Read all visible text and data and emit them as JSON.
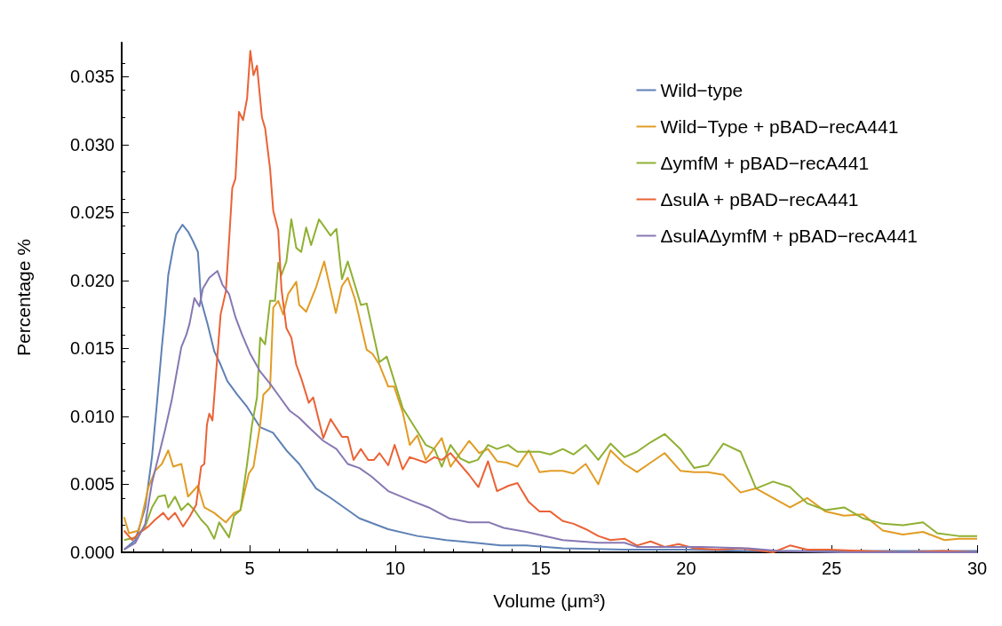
{
  "chart_data": {
    "type": "line",
    "xlabel": "Volume (μm³)",
    "ylabel": "Percentage %",
    "xlim": [
      0.6,
      30
    ],
    "xticks": [
      5,
      10,
      15,
      20,
      25,
      30
    ],
    "ylim": [
      0,
      0.0375
    ],
    "yticks": [
      {
        "value": 0,
        "label": "0.000"
      },
      {
        "value": 0.005,
        "label": "0.005"
      },
      {
        "value": 0.01,
        "label": "0.010"
      },
      {
        "value": 0.015,
        "label": "0.015"
      },
      {
        "value": 0.02,
        "label": "0.020"
      },
      {
        "value": 0.025,
        "label": "0.025"
      },
      {
        "value": 0.03,
        "label": "0.030"
      },
      {
        "value": 0.035,
        "label": "0.035"
      }
    ],
    "grid": false,
    "legend": "top right",
    "marker": "none",
    "line_style": "solid",
    "series": [
      {
        "name": "Wild−type",
        "color": "#5e81b5",
        "x": [
          0.68,
          1.07,
          1.41,
          1.64,
          1.8,
          1.98,
          2.09,
          2.2,
          2.37,
          2.48,
          2.69,
          2.88,
          3.05,
          3.22,
          3.33,
          3.55,
          3.78,
          4.0,
          4.23,
          4.57,
          4.91,
          5.36,
          5.8,
          6.26,
          6.7,
          7.28,
          7.78,
          8.77,
          9.76,
          10.76,
          11.75,
          12.74,
          13.63,
          14.5,
          15.76,
          17.88,
          20,
          22.13,
          26,
          30
        ],
        "values": [
          0.0002,
          0.0009,
          0.0033,
          0.007,
          0.0107,
          0.0151,
          0.0175,
          0.0204,
          0.0224,
          0.0234,
          0.0241,
          0.0236,
          0.0229,
          0.0221,
          0.0185,
          0.0168,
          0.0148,
          0.0138,
          0.0126,
          0.0116,
          0.0107,
          0.0092,
          0.0088,
          0.0075,
          0.0065,
          0.0047,
          0.004,
          0.0025,
          0.0017,
          0.0012,
          0.0009,
          0.0007,
          0.0005,
          0.0005,
          0.0003,
          0.0002,
          0.0002,
          0.0001,
          0.0001,
          0.0001
        ]
      },
      {
        "name": "Wild−Type + pBAD−recA441",
        "color": "#e19c24",
        "x": [
          0.68,
          0.85,
          1.19,
          1.52,
          1.75,
          1.98,
          2.2,
          2.37,
          2.65,
          2.88,
          3.22,
          3.44,
          3.78,
          4.18,
          4.46,
          4.68,
          4.97,
          5.13,
          5.36,
          5.47,
          5.7,
          5.81,
          5.98,
          6.15,
          6.32,
          6.6,
          6.7,
          6.94,
          7.28,
          7.56,
          7.96,
          8.17,
          8.37,
          8.62,
          9.02,
          9.22,
          9.46,
          9.76,
          9.96,
          10.26,
          10.5,
          10.76,
          11.05,
          11.6,
          11.9,
          12.54,
          12.89,
          13.19,
          13.5,
          13.84,
          14.2,
          14.59,
          14.96,
          15.33,
          15.76,
          16.13,
          16.55,
          16.98,
          17.4,
          17.88,
          18.31,
          18.78,
          19.26,
          19.8,
          20.28,
          20.75,
          21.28,
          21.87,
          22.4,
          22.99,
          23.57,
          24.16,
          24.79,
          25.43,
          26.07,
          26.76,
          27.45,
          28.14,
          28.88,
          29.36,
          30
        ],
        "values": [
          0.0026,
          0.0014,
          0.0016,
          0.0048,
          0.006,
          0.0065,
          0.0075,
          0.0063,
          0.0065,
          0.0041,
          0.0049,
          0.0033,
          0.0029,
          0.0022,
          0.0029,
          0.0031,
          0.0058,
          0.0063,
          0.0094,
          0.0116,
          0.0121,
          0.018,
          0.0185,
          0.0175,
          0.019,
          0.0199,
          0.0182,
          0.0177,
          0.0195,
          0.0214,
          0.0176,
          0.0196,
          0.0202,
          0.0186,
          0.0149,
          0.0146,
          0.0138,
          0.0122,
          0.0122,
          0.0103,
          0.0079,
          0.0086,
          0.0068,
          0.0084,
          0.0063,
          0.0082,
          0.0073,
          0.0076,
          0.0067,
          0.0066,
          0.0063,
          0.0075,
          0.0059,
          0.006,
          0.006,
          0.0058,
          0.0065,
          0.005,
          0.0075,
          0.0065,
          0.0059,
          0.0066,
          0.0073,
          0.006,
          0.0059,
          0.0059,
          0.0057,
          0.0044,
          0.0047,
          0.004,
          0.0033,
          0.004,
          0.003,
          0.0027,
          0.0028,
          0.0016,
          0.0013,
          0.0015,
          0.0009,
          0.001,
          0.001
        ]
      },
      {
        "name": "ΔymfM + pBAD−recA441",
        "color": "#8fb032",
        "x": [
          0.68,
          1.07,
          1.41,
          1.64,
          1.86,
          2.09,
          2.2,
          2.43,
          2.65,
          2.88,
          3.1,
          3.33,
          3.55,
          3.78,
          3.95,
          4.29,
          4.46,
          4.68,
          4.91,
          5.08,
          5.25,
          5.36,
          5.53,
          5.7,
          5.87,
          5.98,
          6.09,
          6.26,
          6.43,
          6.6,
          6.77,
          6.94,
          7.11,
          7.38,
          7.78,
          7.98,
          8.17,
          8.37,
          8.82,
          9.02,
          9.46,
          9.71,
          10.26,
          10.76,
          11.05,
          11.35,
          11.6,
          11.9,
          12.24,
          12.54,
          12.84,
          13.19,
          13.5,
          13.88,
          14.2,
          14.59,
          14.96,
          15.33,
          15.76,
          16.13,
          16.55,
          16.98,
          17.4,
          17.88,
          18.31,
          18.78,
          19.26,
          19.8,
          20.28,
          20.75,
          21.28,
          21.87,
          22.4,
          22.99,
          23.57,
          24.16,
          24.79,
          25.43,
          26.07,
          26.76,
          27.45,
          28.14,
          28.63,
          29.36,
          30
        ],
        "values": [
          0.0009,
          0.0011,
          0.0019,
          0.0033,
          0.0041,
          0.0042,
          0.0033,
          0.0041,
          0.0031,
          0.0036,
          0.0031,
          0.0024,
          0.0019,
          0.001,
          0.0022,
          0.0011,
          0.0027,
          0.0031,
          0.0065,
          0.0094,
          0.0114,
          0.0158,
          0.0153,
          0.0185,
          0.0185,
          0.0213,
          0.0204,
          0.0214,
          0.0245,
          0.0224,
          0.0221,
          0.0239,
          0.0226,
          0.0245,
          0.0233,
          0.0238,
          0.0201,
          0.0214,
          0.0182,
          0.0183,
          0.014,
          0.0144,
          0.0106,
          0.0089,
          0.0079,
          0.0076,
          0.0063,
          0.0079,
          0.0069,
          0.0066,
          0.0068,
          0.0079,
          0.0076,
          0.0079,
          0.0074,
          0.0074,
          0.0074,
          0.0072,
          0.0076,
          0.0072,
          0.0079,
          0.0068,
          0.008,
          0.007,
          0.0074,
          0.0081,
          0.0087,
          0.0076,
          0.0062,
          0.0064,
          0.008,
          0.0074,
          0.0047,
          0.0052,
          0.0048,
          0.0036,
          0.0031,
          0.0033,
          0.0025,
          0.0021,
          0.002,
          0.0022,
          0.0014,
          0.0012,
          0.0012
        ]
      },
      {
        "name": "ΔsulA + pBAD−recA441",
        "color": "#eb6235",
        "x": [
          0.68,
          0.96,
          1.19,
          1.52,
          1.75,
          2.03,
          2.2,
          2.43,
          2.71,
          2.93,
          3.16,
          3.33,
          3.44,
          3.53,
          3.61,
          3.72,
          3.84,
          4.0,
          4.18,
          4.29,
          4.4,
          4.51,
          4.63,
          4.77,
          4.91,
          5.02,
          5.13,
          5.25,
          5.42,
          5.53,
          5.7,
          5.81,
          5.98,
          6.09,
          6.26,
          6.43,
          6.6,
          6.77,
          7.03,
          7.18,
          7.53,
          7.78,
          8.17,
          8.37,
          8.57,
          8.82,
          9.07,
          9.27,
          9.46,
          9.76,
          9.98,
          10.26,
          10.5,
          11.05,
          11.35,
          11.6,
          11.9,
          12.54,
          12.86,
          13.19,
          13.5,
          13.9,
          14.2,
          14.59,
          14.96,
          15.33,
          15.76,
          16.13,
          16.55,
          16.98,
          17.4,
          17.88,
          18.31,
          18.78,
          19.26,
          19.74,
          20.28,
          21.07,
          21.87,
          22.99,
          23.57,
          24.16,
          24.9,
          26.07,
          27.45,
          28.83,
          30
        ],
        "values": [
          0.0016,
          0.0009,
          0.0014,
          0.0019,
          0.0024,
          0.0029,
          0.0024,
          0.0029,
          0.0019,
          0.0026,
          0.0035,
          0.0063,
          0.0065,
          0.0094,
          0.0102,
          0.0097,
          0.0131,
          0.0175,
          0.0192,
          0.0229,
          0.0268,
          0.0275,
          0.0324,
          0.0318,
          0.0334,
          0.0369,
          0.0351,
          0.0358,
          0.032,
          0.0312,
          0.0282,
          0.0251,
          0.0237,
          0.0194,
          0.0165,
          0.0158,
          0.0138,
          0.0128,
          0.011,
          0.0114,
          0.0084,
          0.0098,
          0.0085,
          0.0085,
          0.0068,
          0.0076,
          0.0068,
          0.0068,
          0.0073,
          0.0064,
          0.0079,
          0.0061,
          0.007,
          0.0066,
          0.007,
          0.0068,
          0.0073,
          0.0057,
          0.0048,
          0.0067,
          0.0045,
          0.0049,
          0.0051,
          0.0037,
          0.003,
          0.003,
          0.0023,
          0.0021,
          0.0017,
          0.0012,
          0.0009,
          0.001,
          0.0005,
          0.0008,
          0.0004,
          0.0006,
          0.0003,
          0.0002,
          0.0003,
          0.0,
          0.0005,
          0.0002,
          0.0002,
          0.0001,
          0.0,
          0.0001,
          0.0
        ]
      },
      {
        "name": "ΔsulAΔymfM + pBAD−recA441",
        "color": "#8778b3",
        "x": [
          0.68,
          1.07,
          1.41,
          1.64,
          1.86,
          2.09,
          2.32,
          2.48,
          2.65,
          2.82,
          2.93,
          3.1,
          3.27,
          3.39,
          3.61,
          3.89,
          4.06,
          4.29,
          4.51,
          4.74,
          5.02,
          5.36,
          5.7,
          6.04,
          6.38,
          6.7,
          7.08,
          7.53,
          7.98,
          8.37,
          8.77,
          9.17,
          9.76,
          10.55,
          11.15,
          11.85,
          12.54,
          13.23,
          13.73,
          14.5,
          15.76,
          16.98,
          17.88,
          18.31,
          19.26,
          20.54,
          22.13,
          23.2,
          25.33,
          30
        ],
        "values": [
          0.0002,
          0.0007,
          0.0021,
          0.0051,
          0.007,
          0.009,
          0.0112,
          0.0131,
          0.0151,
          0.016,
          0.0168,
          0.0187,
          0.0181,
          0.0194,
          0.0202,
          0.0207,
          0.0197,
          0.019,
          0.0173,
          0.016,
          0.0146,
          0.0133,
          0.0124,
          0.0114,
          0.0104,
          0.0099,
          0.0091,
          0.0082,
          0.0076,
          0.0065,
          0.0062,
          0.0056,
          0.0045,
          0.0038,
          0.0033,
          0.0025,
          0.0022,
          0.0022,
          0.0018,
          0.0015,
          0.0009,
          0.0007,
          0.0007,
          0.0004,
          0.0004,
          0.0004,
          0.0003,
          0.0001,
          0.0,
          0.0
        ]
      }
    ]
  }
}
